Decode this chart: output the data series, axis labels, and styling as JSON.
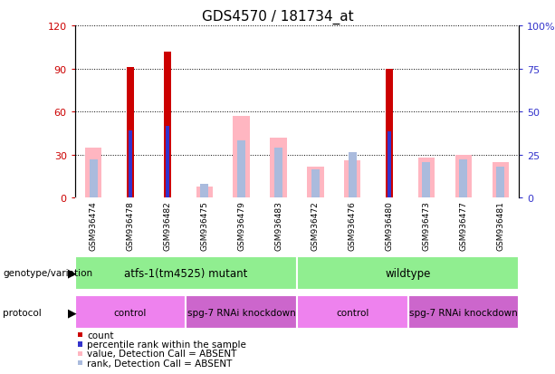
{
  "title": "GDS4570 / 181734_at",
  "samples": [
    "GSM936474",
    "GSM936478",
    "GSM936482",
    "GSM936475",
    "GSM936479",
    "GSM936483",
    "GSM936472",
    "GSM936476",
    "GSM936480",
    "GSM936473",
    "GSM936477",
    "GSM936481"
  ],
  "count": [
    0,
    91,
    102,
    0,
    0,
    0,
    0,
    0,
    90,
    0,
    0,
    0
  ],
  "percentile_rank": [
    0,
    47,
    50,
    0,
    0,
    0,
    0,
    0,
    46,
    0,
    0,
    0
  ],
  "value_absent": [
    35,
    0,
    0,
    8,
    57,
    42,
    22,
    26,
    0,
    28,
    30,
    25
  ],
  "rank_absent": [
    27,
    0,
    0,
    10,
    40,
    35,
    20,
    32,
    0,
    25,
    27,
    22
  ],
  "ylim_left": [
    0,
    120
  ],
  "ylim_right": [
    0,
    100
  ],
  "yticks_left": [
    0,
    30,
    60,
    90,
    120
  ],
  "ytick_labels_left": [
    "0",
    "30",
    "60",
    "90",
    "120"
  ],
  "yticks_right": [
    0,
    25,
    50,
    75,
    100
  ],
  "ytick_labels_right": [
    "0",
    "25",
    "50",
    "75",
    "100%"
  ],
  "bar_color_count": "#CC0000",
  "bar_color_rank": "#3333CC",
  "bar_color_value_absent": "#FFB6C1",
  "bar_color_rank_absent": "#AABBDD",
  "genotype_groups": [
    {
      "label": "atfs-1(tm4525) mutant",
      "start": 0,
      "end": 6
    },
    {
      "label": "wildtype",
      "start": 6,
      "end": 12
    }
  ],
  "protocol_groups": [
    {
      "label": "control",
      "start": 0,
      "end": 3
    },
    {
      "label": "spg-7 RNAi knockdown",
      "start": 3,
      "end": 6
    },
    {
      "label": "control",
      "start": 6,
      "end": 9
    },
    {
      "label": "spg-7 RNAi knockdown",
      "start": 9,
      "end": 12
    }
  ],
  "genotype_color": "#90EE90",
  "protocol_colors": [
    "#EE82EE",
    "#CC66CC",
    "#EE82EE",
    "#CC66CC"
  ],
  "sample_bg_color": "#C8C8C8",
  "legend_items": [
    {
      "label": "count",
      "color": "#CC0000"
    },
    {
      "label": "percentile rank within the sample",
      "color": "#3333CC"
    },
    {
      "label": "value, Detection Call = ABSENT",
      "color": "#FFB6C1"
    },
    {
      "label": "rank, Detection Call = ABSENT",
      "color": "#AABBDD"
    }
  ]
}
